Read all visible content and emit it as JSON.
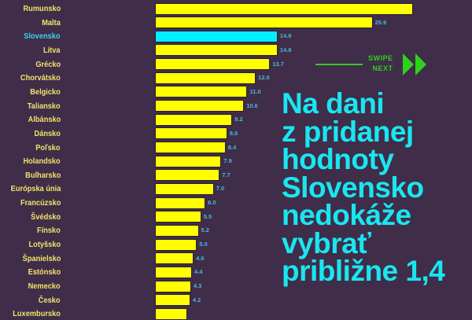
{
  "chart_data": {
    "type": "bar",
    "orientation": "horizontal",
    "categories": [
      "Rumunsko",
      "Malta",
      "Slovensko",
      "Litva",
      "Grécko",
      "Chorvátsko",
      "Belgicko",
      "Taliansko",
      "Albánsko",
      "Dánsko",
      "Poľsko",
      "Holandsko",
      "Bulharsko",
      "Európska únia",
      "Francúzsko",
      "Švédsko",
      "Fínsko",
      "Lotyšsko",
      "Španielsko",
      "Estónsko",
      "Nemecko",
      "Česko",
      "Luxembursko"
    ],
    "values": [
      30.7,
      25.9,
      14.6,
      14.6,
      13.7,
      12.0,
      11.0,
      10.6,
      9.2,
      8.6,
      8.4,
      7.9,
      7.7,
      7.0,
      6.0,
      5.5,
      5.2,
      5.0,
      4.6,
      4.4,
      4.3,
      4.2,
      3.8
    ],
    "value_labels": [
      "",
      "25.9",
      "14.6",
      "14.6",
      "13.7",
      "12.0",
      "11.0",
      "10.6",
      "9.2",
      "8.6",
      "8.4",
      "7.9",
      "7.7",
      "7.0",
      "6.0",
      "5.5",
      "5.2",
      "5.0",
      "4.6",
      "4.4",
      "4.3",
      "4.2",
      ""
    ],
    "highlight": "Slovensko",
    "colors": {
      "bar": "#ffff00",
      "highlight_bar": "#00f0ff",
      "label": "#f2e36a",
      "highlight_label": "#3fd3ea",
      "value_label": "#4bb8dc",
      "background": "#3f2d4a"
    },
    "grid": false
  },
  "swipe": {
    "line1": "SWIPE",
    "line2": "NEXT",
    "icon": "double-chevron-right-icon",
    "color": "#2fd11d"
  },
  "headline": "Na dani\nz pridanej\nhodnoty\nSlovensko\nnedokáže\nvybrať\npribližne 1,4"
}
